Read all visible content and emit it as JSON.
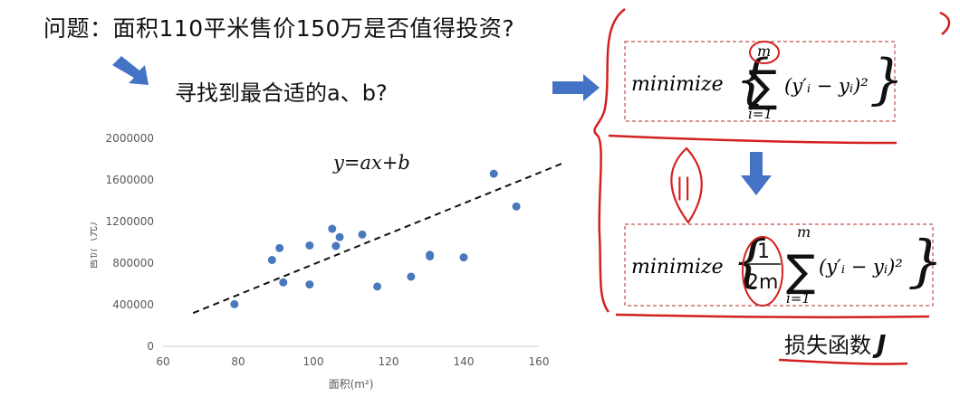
{
  "slide": {
    "title": "问题：面积110平米售价150万是否值得投资?",
    "subtitle": "寻找到最合适的a、b?",
    "loss_label": "损失函数",
    "loss_symbol": "J"
  },
  "formulas": {
    "equation": "y=ax+b",
    "top": {
      "prefix": "minimize",
      "upper": "m",
      "lower": "i=1",
      "term": "(y′ᵢ − yᵢ)²"
    },
    "equiv_mark": "||",
    "bottom": {
      "prefix": "minimize",
      "frac_num": "1",
      "frac_den": "2m",
      "upper": "m",
      "lower": "i=1",
      "term": "(y′ᵢ − yᵢ)²"
    }
  },
  "colors": {
    "accent_blue": "#4472c4",
    "marker_blue": "#4a78bd",
    "annotation_red": "#d42020",
    "box_red": "#c0504d"
  },
  "icons": {
    "arrow_down_right": "arrow-down-right-icon",
    "arrow_right": "arrow-right-icon",
    "arrow_down": "arrow-down-icon"
  },
  "chart_data": {
    "type": "scatter",
    "title": "",
    "xlabel": "面积(m²)",
    "ylabel": "售价（元）",
    "xlim": [
      60,
      160
    ],
    "ylim": [
      0,
      2000000
    ],
    "xticks": [
      "60",
      "80",
      "100",
      "120",
      "140",
      "160"
    ],
    "yticks": [
      "0",
      "400000",
      "800000",
      "1200000",
      "1600000",
      "2000000"
    ],
    "grid": false,
    "points": [
      {
        "x": 79,
        "y": 405000
      },
      {
        "x": 89,
        "y": 830000
      },
      {
        "x": 91,
        "y": 945000
      },
      {
        "x": 92,
        "y": 615000
      },
      {
        "x": 99,
        "y": 970000
      },
      {
        "x": 99,
        "y": 595000
      },
      {
        "x": 105,
        "y": 1130000
      },
      {
        "x": 106,
        "y": 965000
      },
      {
        "x": 107,
        "y": 1050000
      },
      {
        "x": 113,
        "y": 1075000
      },
      {
        "x": 117,
        "y": 575000
      },
      {
        "x": 126,
        "y": 670000
      },
      {
        "x": 131,
        "y": 865000
      },
      {
        "x": 131,
        "y": 880000
      },
      {
        "x": 140,
        "y": 855000
      },
      {
        "x": 148,
        "y": 1660000
      },
      {
        "x": 154,
        "y": 1345000
      }
    ],
    "trend_line": {
      "style": "dashed",
      "from": {
        "x": 68,
        "y": 320000
      },
      "to": {
        "x": 167,
        "y": 1770000
      }
    }
  }
}
